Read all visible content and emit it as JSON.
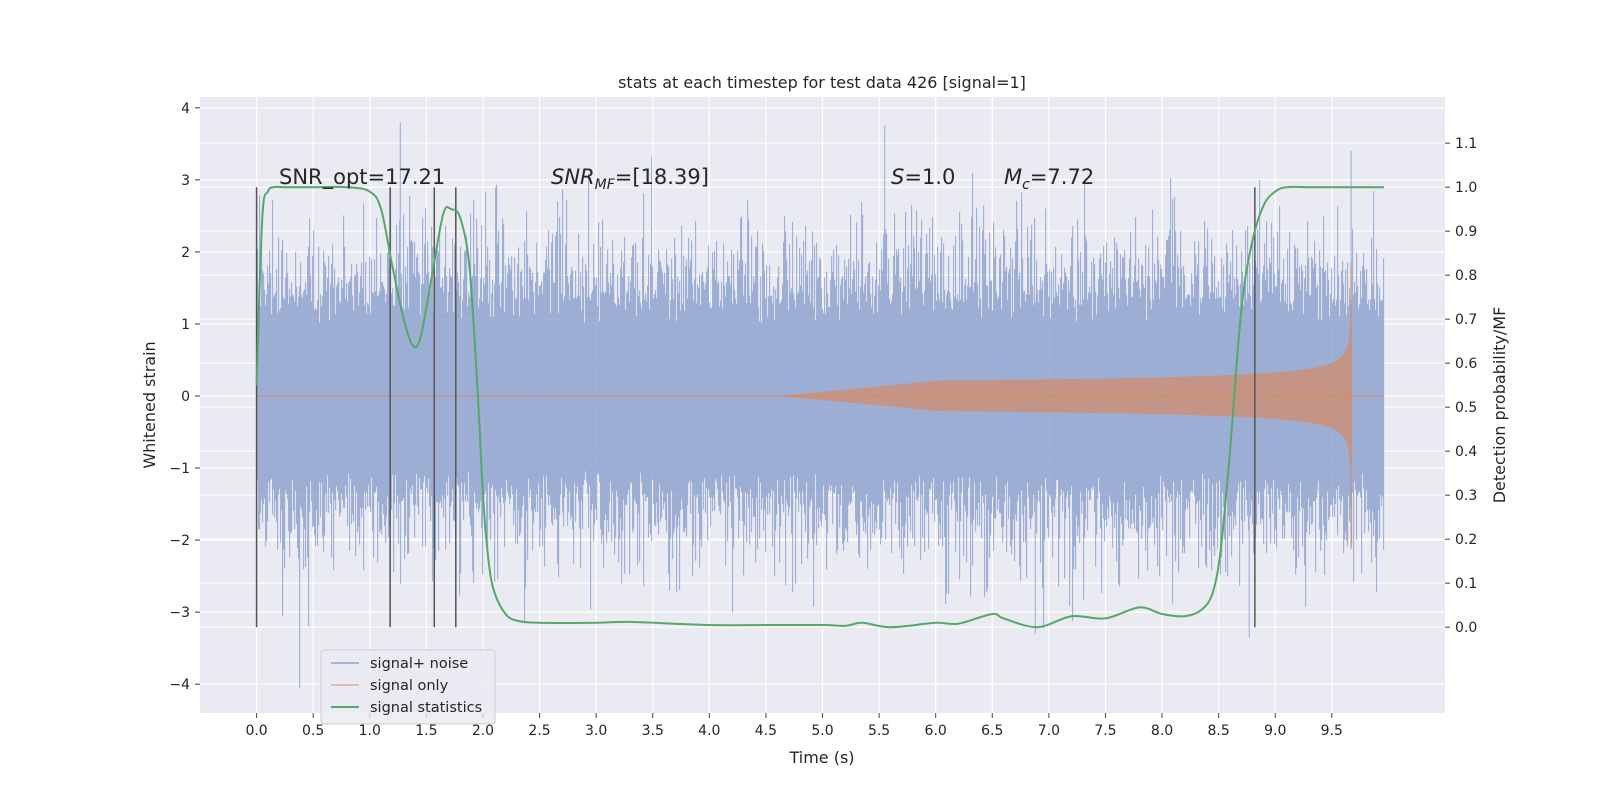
{
  "chart_data": {
    "type": "line",
    "title": "stats at each timestep for test data 426 [signal=1]",
    "xlabel": "Time (s)",
    "ylabel": "Whitened strain",
    "y2label": "Detection probability/MF",
    "xlim": [
      -0.5,
      10.5
    ],
    "ylim": [
      -4.4,
      4.15
    ],
    "y2lim": [
      -0.195,
      1.205
    ],
    "x_ticks": [
      "0.0",
      "0.5",
      "1.0",
      "1.5",
      "2.0",
      "2.5",
      "3.0",
      "3.5",
      "4.0",
      "4.5",
      "5.0",
      "5.5",
      "6.0",
      "6.5",
      "7.0",
      "7.5",
      "8.0",
      "8.5",
      "9.0",
      "9.5"
    ],
    "y_ticks": [
      "4",
      "3",
      "2",
      "1",
      "0",
      "−1",
      "−2",
      "−3",
      "−4"
    ],
    "y2_ticks": [
      "1.1",
      "1.0",
      "0.9",
      "0.8",
      "0.7",
      "0.6",
      "0.5",
      "0.4",
      "0.3",
      "0.2",
      "0.1",
      "0.0"
    ],
    "grid": true,
    "legend_position": "lower-left",
    "legend": [
      {
        "label": "signal+ noise",
        "color": "#8fa3d0"
      },
      {
        "label": "signal only",
        "color": "#dd8452"
      },
      {
        "label": "signal statistics",
        "color": "#55a868"
      }
    ],
    "annotations": {
      "snr_opt": "SNR_opt=17.21",
      "snr_mf_base": "SNR",
      "snr_mf_sub": "MF",
      "snr_mf_rest": "=[18.39]",
      "s_sym": "S",
      "s_rest": "=1.0",
      "mc_base": "M",
      "mc_sub": "c",
      "mc_rest": "=7.72"
    },
    "noise_series": {
      "name": "signal+ noise",
      "t_start": 0.0,
      "t_end": 9.96,
      "range": [
        -4.05,
        3.8
      ]
    },
    "signal_series": {
      "name": "signal only",
      "t_merger": 9.67,
      "peak_amplitude": 1.85
    },
    "vertical_markers": [
      0.0,
      1.18,
      1.57,
      1.76,
      8.82
    ],
    "statistics_series": {
      "name": "signal statistics",
      "x": [
        0.0,
        0.05,
        0.1,
        0.15,
        0.25,
        0.5,
        0.8,
        1.0,
        1.1,
        1.2,
        1.3,
        1.38,
        1.45,
        1.55,
        1.65,
        1.72,
        1.8,
        1.88,
        1.95,
        2.0,
        2.05,
        2.1,
        2.2,
        2.3,
        2.5,
        3.0,
        3.3,
        4.0,
        4.5,
        5.0,
        5.2,
        5.35,
        5.6,
        6.0,
        6.2,
        6.5,
        6.6,
        6.9,
        7.2,
        7.5,
        7.8,
        8.0,
        8.2,
        8.35,
        8.45,
        8.52,
        8.6,
        8.7,
        8.8,
        8.9,
        9.0,
        9.1,
        9.3,
        9.5,
        9.8,
        9.96
      ],
      "y": [
        0.55,
        0.93,
        0.99,
        1.0,
        1.0,
        1.0,
        1.0,
        0.99,
        0.95,
        0.82,
        0.7,
        0.64,
        0.66,
        0.8,
        0.94,
        0.95,
        0.93,
        0.82,
        0.55,
        0.3,
        0.15,
        0.08,
        0.03,
        0.015,
        0.01,
        0.01,
        0.012,
        0.005,
        0.005,
        0.005,
        0.003,
        0.01,
        0.0,
        0.01,
        0.008,
        0.03,
        0.02,
        0.0,
        0.025,
        0.02,
        0.045,
        0.03,
        0.025,
        0.04,
        0.08,
        0.18,
        0.4,
        0.72,
        0.88,
        0.96,
        0.99,
        1.0,
        1.0,
        1.0,
        1.0,
        1.0
      ]
    }
  }
}
